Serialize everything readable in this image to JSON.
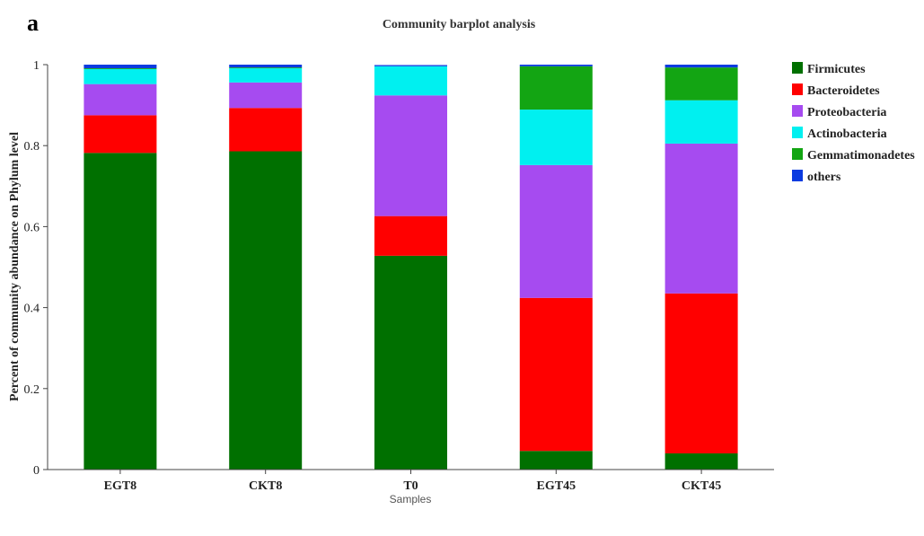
{
  "panel_label": "a",
  "chart_data": {
    "type": "bar",
    "stacked": true,
    "title": "Community barplot analysis",
    "xlabel": "Samples",
    "ylabel": "Percent of community abundance on Phylum level",
    "ylim": [
      0,
      1
    ],
    "yticks": [
      "0",
      "0.2",
      "0.4",
      "0.6",
      "0.8",
      "1"
    ],
    "categories": [
      "EGT8",
      "CKT8",
      "T0",
      "EGT45",
      "CKT45"
    ],
    "legend_position": "right",
    "series": [
      {
        "name": "Firmicutes",
        "color": "#007000",
        "values": [
          0.782,
          0.786,
          0.528,
          0.046,
          0.04
        ]
      },
      {
        "name": "Bacteroidetes",
        "color": "#ff0000",
        "values": [
          0.093,
          0.107,
          0.098,
          0.378,
          0.395
        ]
      },
      {
        "name": "Proteobacteria",
        "color": "#a64bf0",
        "values": [
          0.077,
          0.063,
          0.298,
          0.328,
          0.37
        ]
      },
      {
        "name": "Actinobacteria",
        "color": "#00f0f0",
        "values": [
          0.037,
          0.035,
          0.072,
          0.137,
          0.107
        ]
      },
      {
        "name": "Gemmatimonadetes",
        "color": "#13a513",
        "values": [
          0.002,
          0.002,
          0.0,
          0.107,
          0.081
        ]
      },
      {
        "name": "others",
        "color": "#0b3be0",
        "values": [
          0.009,
          0.007,
          0.003,
          0.004,
          0.007
        ]
      }
    ]
  }
}
